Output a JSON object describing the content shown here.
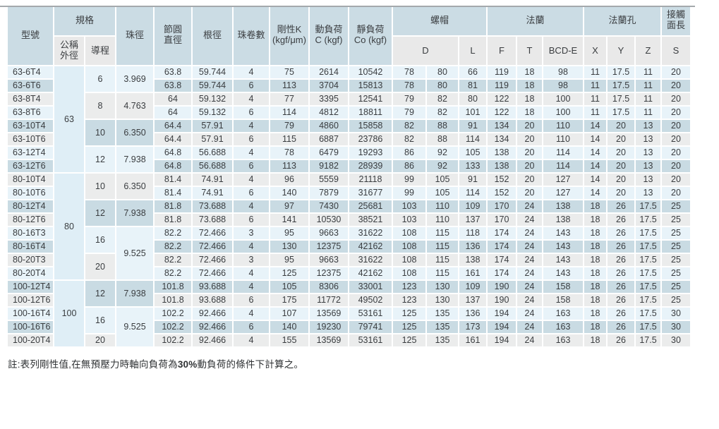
{
  "header": {
    "model": "型號",
    "spec": "規格",
    "nominal_od": "公稱\n外徑",
    "lead": "導程",
    "ball_dia": "珠徑",
    "pitch_dia": "節圓\n直徑",
    "root_dia": "根徑",
    "circuits": "珠卷數",
    "stiffness": "剛性K\n(kgf/μm)",
    "dynamic_load": "動負荷\nC (kgf)",
    "static_load": "靜負荷\nCo (kgf)",
    "nut": "螺帽",
    "flange": "法蘭",
    "flange_holes": "法蘭孔",
    "contact_len": "接觸\n面長",
    "sub": {
      "d": "D",
      "l": "L",
      "f": "F",
      "t": "T",
      "bcd": "BCD-E",
      "x": "X",
      "y": "Y",
      "z": "Z",
      "s": "S"
    }
  },
  "colors": {
    "header_blue": "#cbdce4",
    "header_gray": "#e9e9e9",
    "row_light_blue": "#e8f3f9",
    "row_medium_blue": "#c9dbe3",
    "row_gray": "#ebecec",
    "nominal_cell_blue": "#dfeef6",
    "text": "#3a3d40"
  },
  "merges": {
    "nominal": [
      {
        "start": 0,
        "span": 8,
        "label": "63"
      },
      {
        "start": 8,
        "span": 8,
        "label": "80"
      },
      {
        "start": 16,
        "span": 5,
        "label": "100"
      }
    ],
    "lead": [
      {
        "start": 0,
        "span": 2,
        "label": "6"
      },
      {
        "start": 2,
        "span": 2,
        "label": "8"
      },
      {
        "start": 4,
        "span": 2,
        "label": "10"
      },
      {
        "start": 6,
        "span": 2,
        "label": "12"
      },
      {
        "start": 8,
        "span": 2,
        "label": "10"
      },
      {
        "start": 10,
        "span": 2,
        "label": "12"
      },
      {
        "start": 12,
        "span": 2,
        "label": "16"
      },
      {
        "start": 14,
        "span": 2,
        "label": "20"
      },
      {
        "start": 16,
        "span": 2,
        "label": "12"
      },
      {
        "start": 18,
        "span": 2,
        "label": "16"
      },
      {
        "start": 20,
        "span": 1,
        "label": "20"
      }
    ],
    "ball": [
      {
        "start": 0,
        "span": 2,
        "label": "3.969"
      },
      {
        "start": 2,
        "span": 2,
        "label": "4.763"
      },
      {
        "start": 4,
        "span": 2,
        "label": "6.350"
      },
      {
        "start": 6,
        "span": 2,
        "label": "7.938"
      },
      {
        "start": 8,
        "span": 2,
        "label": "6.350"
      },
      {
        "start": 10,
        "span": 2,
        "label": "7.938"
      },
      {
        "start": 12,
        "span": 4,
        "label": "9.525"
      },
      {
        "start": 16,
        "span": 2,
        "label": "7.938"
      },
      {
        "start": 18,
        "span": 3,
        "label": "9.525"
      }
    ]
  },
  "rows": [
    {
      "model": "63-6T4",
      "values": [
        "63.8",
        "59.744",
        "4",
        "75",
        "2614",
        "10542",
        "78",
        "80",
        "66",
        "119",
        "18",
        "98",
        "11",
        "17.5",
        "11",
        "20"
      ]
    },
    {
      "model": "63-6T6",
      "values": [
        "63.8",
        "59.744",
        "6",
        "113",
        "3704",
        "15813",
        "78",
        "80",
        "81",
        "119",
        "18",
        "98",
        "11",
        "17.5",
        "11",
        "20"
      ]
    },
    {
      "model": "63-8T4",
      "values": [
        "64",
        "59.132",
        "4",
        "77",
        "3395",
        "12541",
        "79",
        "82",
        "80",
        "122",
        "18",
        "100",
        "11",
        "17.5",
        "11",
        "20"
      ]
    },
    {
      "model": "63-8T6",
      "values": [
        "64",
        "59.132",
        "6",
        "114",
        "4812",
        "18811",
        "79",
        "82",
        "101",
        "122",
        "18",
        "100",
        "11",
        "17.5",
        "11",
        "20"
      ]
    },
    {
      "model": "63-10T4",
      "values": [
        "64.4",
        "57.91",
        "4",
        "79",
        "4860",
        "15858",
        "82",
        "88",
        "91",
        "134",
        "20",
        "110",
        "14",
        "20",
        "13",
        "20"
      ]
    },
    {
      "model": "63-10T6",
      "values": [
        "64.4",
        "57.91",
        "6",
        "115",
        "6887",
        "23786",
        "82",
        "88",
        "114",
        "134",
        "20",
        "110",
        "14",
        "20",
        "13",
        "20"
      ]
    },
    {
      "model": "63-12T4",
      "values": [
        "64.8",
        "56.688",
        "4",
        "78",
        "6479",
        "19293",
        "86",
        "92",
        "105",
        "138",
        "20",
        "114",
        "14",
        "20",
        "13",
        "20"
      ]
    },
    {
      "model": "63-12T6",
      "values": [
        "64.8",
        "56.688",
        "6",
        "113",
        "9182",
        "28939",
        "86",
        "92",
        "133",
        "138",
        "20",
        "114",
        "14",
        "20",
        "13",
        "20"
      ]
    },
    {
      "model": "80-10T4",
      "values": [
        "81.4",
        "74.91",
        "4",
        "96",
        "5559",
        "21118",
        "99",
        "105",
        "91",
        "152",
        "20",
        "127",
        "14",
        "20",
        "13",
        "20"
      ]
    },
    {
      "model": "80-10T6",
      "values": [
        "81.4",
        "74.91",
        "6",
        "140",
        "7879",
        "31677",
        "99",
        "105",
        "114",
        "152",
        "20",
        "127",
        "14",
        "20",
        "13",
        "20"
      ]
    },
    {
      "model": "80-12T4",
      "values": [
        "81.8",
        "73.688",
        "4",
        "97",
        "7430",
        "25681",
        "103",
        "110",
        "109",
        "170",
        "24",
        "138",
        "18",
        "26",
        "17.5",
        "25"
      ]
    },
    {
      "model": "80-12T6",
      "values": [
        "81.8",
        "73.688",
        "6",
        "141",
        "10530",
        "38521",
        "103",
        "110",
        "137",
        "170",
        "24",
        "138",
        "18",
        "26",
        "17.5",
        "25"
      ]
    },
    {
      "model": "80-16T3",
      "values": [
        "82.2",
        "72.466",
        "3",
        "95",
        "9663",
        "31622",
        "108",
        "115",
        "118",
        "174",
        "24",
        "143",
        "18",
        "26",
        "17.5",
        "25"
      ]
    },
    {
      "model": "80-16T4",
      "values": [
        "82.2",
        "72.466",
        "4",
        "130",
        "12375",
        "42162",
        "108",
        "115",
        "136",
        "174",
        "24",
        "143",
        "18",
        "26",
        "17.5",
        "25"
      ]
    },
    {
      "model": "80-20T3",
      "values": [
        "82.2",
        "72.466",
        "3",
        "95",
        "9663",
        "31622",
        "108",
        "115",
        "138",
        "174",
        "24",
        "143",
        "18",
        "26",
        "17.5",
        "25"
      ]
    },
    {
      "model": "80-20T4",
      "values": [
        "82.2",
        "72.466",
        "4",
        "125",
        "12375",
        "42162",
        "108",
        "115",
        "161",
        "174",
        "24",
        "143",
        "18",
        "26",
        "17.5",
        "25"
      ]
    },
    {
      "model": "100-12T4",
      "values": [
        "101.8",
        "93.688",
        "4",
        "105",
        "8306",
        "33001",
        "123",
        "130",
        "109",
        "190",
        "24",
        "158",
        "18",
        "26",
        "17.5",
        "25"
      ]
    },
    {
      "model": "100-12T6",
      "values": [
        "101.8",
        "93.688",
        "6",
        "175",
        "11772",
        "49502",
        "123",
        "130",
        "137",
        "190",
        "24",
        "158",
        "18",
        "26",
        "17.5",
        "25"
      ]
    },
    {
      "model": "100-16T4",
      "values": [
        "102.2",
        "92.466",
        "4",
        "107",
        "13569",
        "53161",
        "125",
        "135",
        "136",
        "194",
        "24",
        "163",
        "18",
        "26",
        "17.5",
        "30"
      ]
    },
    {
      "model": "100-16T6",
      "values": [
        "102.2",
        "92.466",
        "6",
        "140",
        "19230",
        "79741",
        "125",
        "135",
        "173",
        "194",
        "24",
        "163",
        "18",
        "26",
        "17.5",
        "30"
      ]
    },
    {
      "model": "100-20T4",
      "values": [
        "102.2",
        "92.466",
        "4",
        "155",
        "13569",
        "53161",
        "125",
        "135",
        "161",
        "194",
        "24",
        "163",
        "18",
        "26",
        "17.5",
        "30"
      ]
    }
  ],
  "note": {
    "pre": "註:表列剛性值,在無預壓力時軸向負荷為",
    "bold": "30%",
    "post": "動負荷的條件下計算之。"
  }
}
